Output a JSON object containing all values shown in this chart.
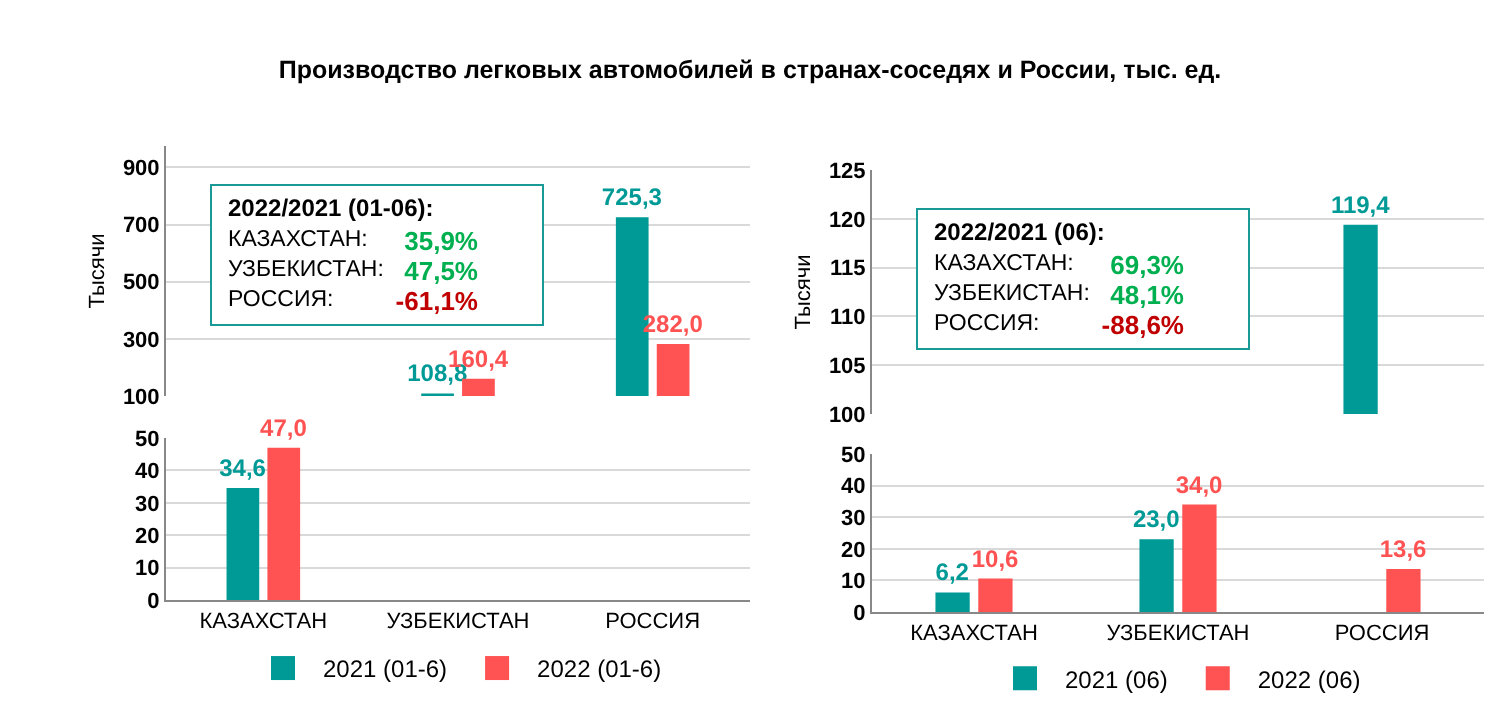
{
  "chart_data": [
    {
      "type": "bar",
      "title": "Производство легковых автомобилей в странах-соседях и России, тыс. ед.",
      "ylabel": "Тысячи",
      "categories": [
        null,
        null,
        null
      ],
      "ylim": [
        100,
        975
      ],
      "yticks": [
        100,
        300,
        500,
        700,
        900
      ],
      "grid": "y",
      "legend": false,
      "tick_labels": "y",
      "series": [
        {
          "color": "#009a96",
          "values": [
            null,
            108.8,
            725.3
          ],
          "value_labels": [
            null,
            "108,8",
            "725,3"
          ]
        },
        {
          "color": "#ff5252",
          "values": [
            null,
            160.4,
            282.0
          ],
          "value_labels": [
            null,
            "160,4",
            "282,0"
          ]
        }
      ],
      "annotations": [
        "2022/2021 (01-06):",
        "КАЗАХСТАН:",
        "35,9%",
        "УЗБЕКИСТАН:",
        "47,5%",
        "РОССИЯ:",
        "-61,1%"
      ]
    },
    {
      "type": "bar",
      "categories": [
        "КАЗАХСТАН",
        "УЗБЕКИСТАН",
        "РОССИЯ"
      ],
      "ylim": [
        0,
        50
      ],
      "yticks": [
        0,
        10,
        20,
        30,
        40,
        50
      ],
      "grid": "y",
      "legend": "bottom",
      "series": [
        {
          "name": "2021 (01-6)",
          "color": "#009a96",
          "values": [
            34.6,
            null,
            null
          ],
          "value_labels": [
            "34,6",
            null,
            null
          ]
        },
        {
          "name": "2022 (01-6)",
          "color": "#ff5252",
          "values": [
            47.0,
            null,
            null
          ],
          "value_labels": [
            "47,0",
            null,
            null
          ]
        }
      ]
    },
    {
      "type": "bar",
      "ylabel": "Тысячи",
      "categories": [
        null,
        null,
        null
      ],
      "ylim": [
        100,
        125
      ],
      "yticks": [
        100,
        105,
        110,
        115,
        120,
        125
      ],
      "grid": "y",
      "legend": false,
      "tick_labels": "y",
      "series": [
        {
          "color": "#009a96",
          "values": [
            null,
            null,
            119.4
          ],
          "value_labels": [
            null,
            null,
            "119,4"
          ]
        },
        {
          "color": "#ff5252",
          "values": [
            null,
            null,
            null
          ]
        }
      ],
      "annotations": [
        "2022/2021 (06):",
        "КАЗАХСТАН:",
        "69,3%",
        "УЗБЕКИСТАН:",
        "48,1%",
        "РОССИЯ:",
        "-88,6%"
      ]
    },
    {
      "type": "bar",
      "categories": [
        "КАЗАХСТАН",
        "УЗБЕКИСТАН",
        "РОССИЯ"
      ],
      "ylim": [
        0,
        50
      ],
      "yticks": [
        0,
        10,
        20,
        30,
        40,
        50
      ],
      "grid": "y",
      "legend": "bottom",
      "series": [
        {
          "name": "2021 (06)",
          "color": "#009a96",
          "values": [
            6.2,
            23.0,
            null
          ],
          "value_labels": [
            "6,2",
            "23,0",
            null
          ]
        },
        {
          "name": "2022 (06)",
          "color": "#ff5252",
          "values": [
            10.6,
            34.0,
            13.6
          ],
          "value_labels": [
            "10,6",
            "34,0",
            "13,6"
          ]
        }
      ]
    }
  ]
}
